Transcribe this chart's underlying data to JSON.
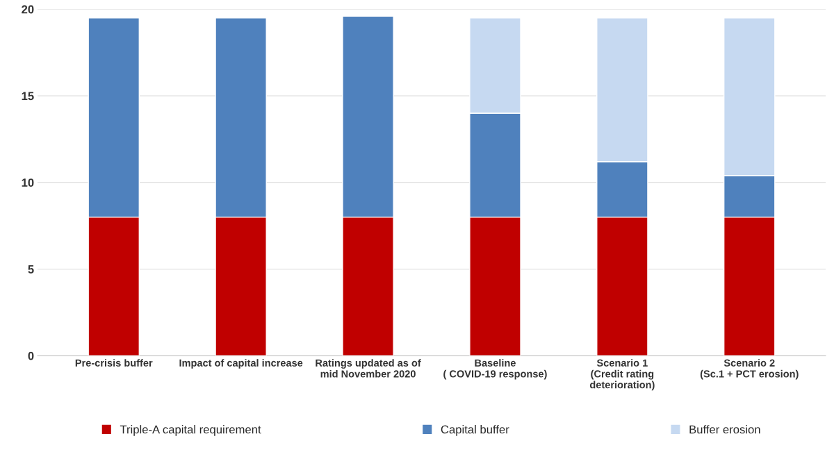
{
  "chart_data": {
    "type": "bar",
    "stacked": true,
    "categories": [
      "Pre-crisis buffer",
      "Impact of capital increase",
      "Ratings updated as of\nmid November 2020",
      "Baseline\n( COVID-19 response)",
      "Scenario 1\n(Credit rating\ndeterioration)",
      "Scenario 2\n(Sc.1 + PCT erosion)"
    ],
    "series": [
      {
        "name": "Triple-A capital requirement",
        "color": "#c00000",
        "values": [
          8,
          8,
          8,
          8,
          8,
          8
        ]
      },
      {
        "name": "Capital buffer",
        "color": "#4f81bd",
        "values": [
          11.5,
          11.5,
          11.6,
          6.0,
          3.2,
          2.4
        ]
      },
      {
        "name": "Buffer erosion",
        "color": "#c6d9f1",
        "values": [
          null,
          null,
          null,
          5.5,
          8.3,
          9.1
        ]
      }
    ],
    "ylim": [
      0,
      20
    ],
    "yticks": [
      0,
      5,
      10,
      15,
      20
    ],
    "grid": "y",
    "legend": "bottom"
  }
}
